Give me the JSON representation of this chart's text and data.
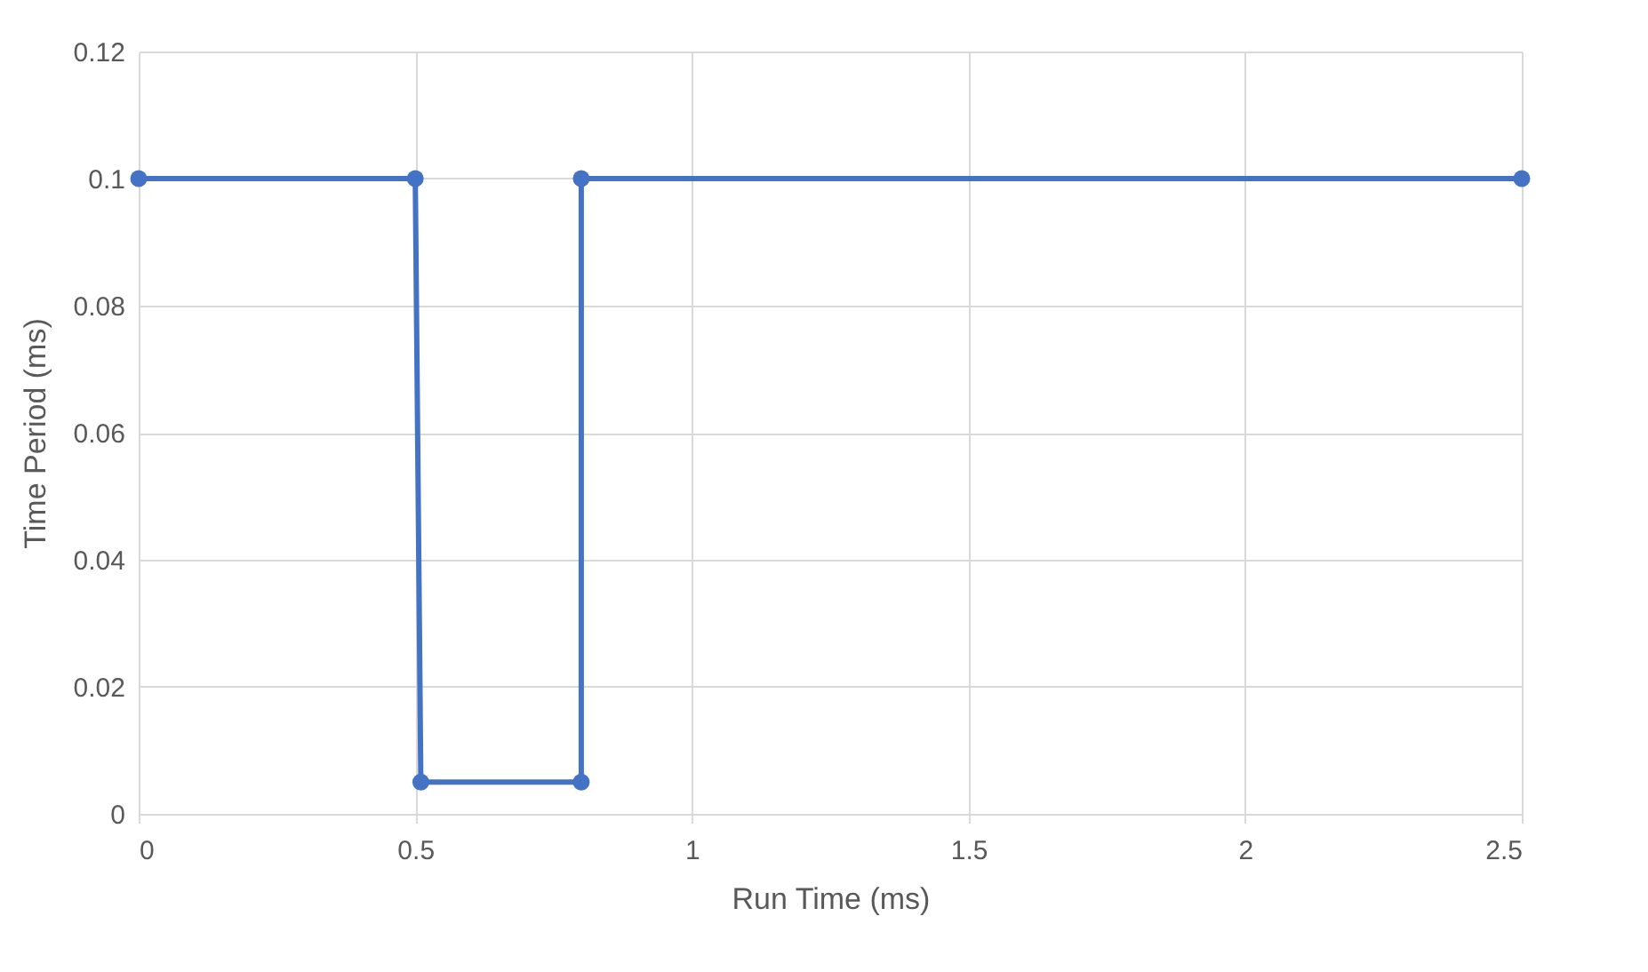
{
  "chart_data": {
    "type": "line",
    "xlabel": "Run Time (ms)",
    "ylabel": "Time Period  (ms)",
    "x": [
      0,
      0.5,
      0.51,
      0.8,
      0.8,
      2.5
    ],
    "series": [
      {
        "color": "#4472c4",
        "values": [
          0.1,
          0.1,
          0.005,
          0.005,
          0.1,
          0.1
        ]
      }
    ],
    "xlim": [
      0,
      2.5
    ],
    "xticks": [
      0,
      0.5,
      1,
      1.5,
      2,
      2.5
    ],
    "ylim": [
      0,
      0.12
    ],
    "yticks": [
      0,
      0.02,
      0.04,
      0.06,
      0.08,
      0.1,
      0.12
    ],
    "grid": true,
    "marker": "circle",
    "line_style": "solid"
  }
}
